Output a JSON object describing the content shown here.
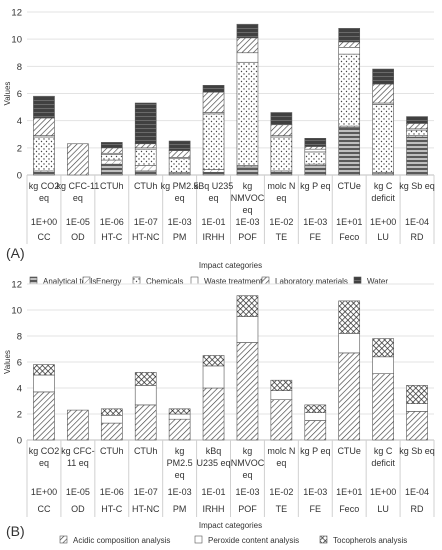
{
  "chart_data": [
    {
      "type": "bar",
      "stacked": true,
      "panel_label": "(A)",
      "ylabel": "Values",
      "xlabel": "Impact categories",
      "ylim": [
        0,
        12
      ],
      "yticks": [
        0,
        2,
        4,
        6,
        8,
        10,
        12
      ],
      "grid": true,
      "legend_placement": "bottom",
      "categories": [
        {
          "unit": [
            "kg CO2",
            "eq"
          ],
          "scale": "1E+00",
          "code": "CC"
        },
        {
          "unit": [
            "kg CFC-11",
            "eq"
          ],
          "scale": "1E-05",
          "code": "OD"
        },
        {
          "unit": [
            "CTUh"
          ],
          "scale": "1E-06",
          "code": "HT-C"
        },
        {
          "unit": [
            "CTUh"
          ],
          "scale": "1E-07",
          "code": "HT-NC"
        },
        {
          "unit": [
            "kg PM2.5",
            "eq"
          ],
          "scale": "1E-03",
          "code": "PM"
        },
        {
          "unit": [
            "kBq U235",
            "eq"
          ],
          "scale": "1E-01",
          "code": "IRHH"
        },
        {
          "unit": [
            "kg",
            "NMVOC",
            "eq"
          ],
          "scale": "1E-03",
          "code": "POF"
        },
        {
          "unit": [
            "molc N",
            "eq"
          ],
          "scale": "1E-02",
          "code": "TE"
        },
        {
          "unit": [
            "kg P eq"
          ],
          "scale": "1E-03",
          "code": "FE"
        },
        {
          "unit": [
            "CTUe"
          ],
          "scale": "1E+01",
          "code": "Feco"
        },
        {
          "unit": [
            "kg C",
            "deficit"
          ],
          "scale": "1E+00",
          "code": "LU"
        },
        {
          "unit": [
            "kg Sb eq"
          ],
          "scale": "1E-04",
          "code": "RD"
        }
      ],
      "series": [
        {
          "name": "Analytical tools",
          "pattern": "hstripes",
          "values": [
            0.2,
            0.0,
            0.8,
            0.3,
            0.1,
            0.2,
            0.6,
            0.2,
            0.7,
            3.5,
            0.1,
            2.8
          ]
        },
        {
          "name": "Energy",
          "pattern": "hatch-light",
          "values": [
            0.1,
            0.0,
            0.3,
            0.4,
            0.1,
            0.2,
            0.1,
            0.1,
            0.1,
            0.1,
            0.1,
            0.1
          ]
        },
        {
          "name": "Chemicals",
          "pattern": "dots",
          "values": [
            2.5,
            0.0,
            0.4,
            1.2,
            1.0,
            4.1,
            7.6,
            2.5,
            0.9,
            5.3,
            5.0,
            0.4
          ]
        },
        {
          "name": "Waste treatment",
          "pattern": "white",
          "values": [
            0.1,
            0.0,
            0.1,
            0.1,
            0.1,
            0.1,
            0.7,
            0.1,
            0.2,
            0.5,
            0.1,
            0.1
          ]
        },
        {
          "name": "Laboratory materials",
          "pattern": "hatch",
          "values": [
            1.3,
            2.3,
            0.4,
            0.3,
            0.5,
            1.5,
            1.1,
            0.8,
            0.2,
            0.4,
            1.4,
            0.4
          ]
        },
        {
          "name": "Water",
          "pattern": "dark",
          "values": [
            1.6,
            0.0,
            0.4,
            3.0,
            0.7,
            0.5,
            1.0,
            0.9,
            0.6,
            1.0,
            1.1,
            0.5
          ]
        }
      ]
    },
    {
      "type": "bar",
      "stacked": true,
      "panel_label": "(B)",
      "ylabel": "Values",
      "xlabel": "Impact categories",
      "ylim": [
        0,
        12
      ],
      "yticks": [
        0,
        2,
        4,
        6,
        8,
        10,
        12
      ],
      "grid": true,
      "legend_placement": "bottom",
      "categories": [
        {
          "unit": [
            "kg CO2",
            "eq"
          ],
          "scale": "1E+00",
          "code": "CC"
        },
        {
          "unit": [
            "kg CFC-",
            "11 eq"
          ],
          "scale": "1E-05",
          "code": "OD"
        },
        {
          "unit": [
            "CTUh"
          ],
          "scale": "1E-06",
          "code": "HT-C"
        },
        {
          "unit": [
            "CTUh"
          ],
          "scale": "1E-07",
          "code": "HT-NC"
        },
        {
          "unit": [
            "kg",
            "PM2.5",
            "eq"
          ],
          "scale": "1E-03",
          "code": "PM"
        },
        {
          "unit": [
            "kBq",
            "U235 eq"
          ],
          "scale": "1E-01",
          "code": "IRHH"
        },
        {
          "unit": [
            "kg",
            "NMVOC",
            "eq"
          ],
          "scale": "1E-03",
          "code": "POF"
        },
        {
          "unit": [
            "molc N",
            "eq"
          ],
          "scale": "1E-02",
          "code": "TE"
        },
        {
          "unit": [
            "kg P eq"
          ],
          "scale": "1E-03",
          "code": "FE"
        },
        {
          "unit": [
            "CTUe"
          ],
          "scale": "1E+01",
          "code": "Feco"
        },
        {
          "unit": [
            "kg C",
            "deficit"
          ],
          "scale": "1E+00",
          "code": "LU"
        },
        {
          "unit": [
            "kg Sb eq"
          ],
          "scale": "1E-04",
          "code": "RD"
        }
      ],
      "series": [
        {
          "name": "Acidic composition analysis",
          "pattern": "hatch",
          "values": [
            3.7,
            2.3,
            1.3,
            2.7,
            1.6,
            4.0,
            7.5,
            3.1,
            1.5,
            6.7,
            5.1,
            2.2
          ]
        },
        {
          "name": "Peroxide content analysis",
          "pattern": "white",
          "values": [
            1.3,
            0.0,
            0.6,
            1.5,
            0.4,
            1.7,
            2.0,
            0.7,
            0.6,
            1.5,
            1.3,
            0.6
          ]
        },
        {
          "name": "Tocopherols analysis",
          "pattern": "crosshatch",
          "values": [
            0.8,
            0.0,
            0.5,
            1.0,
            0.4,
            0.8,
            1.6,
            0.8,
            0.6,
            2.5,
            1.4,
            1.4
          ]
        }
      ]
    }
  ]
}
